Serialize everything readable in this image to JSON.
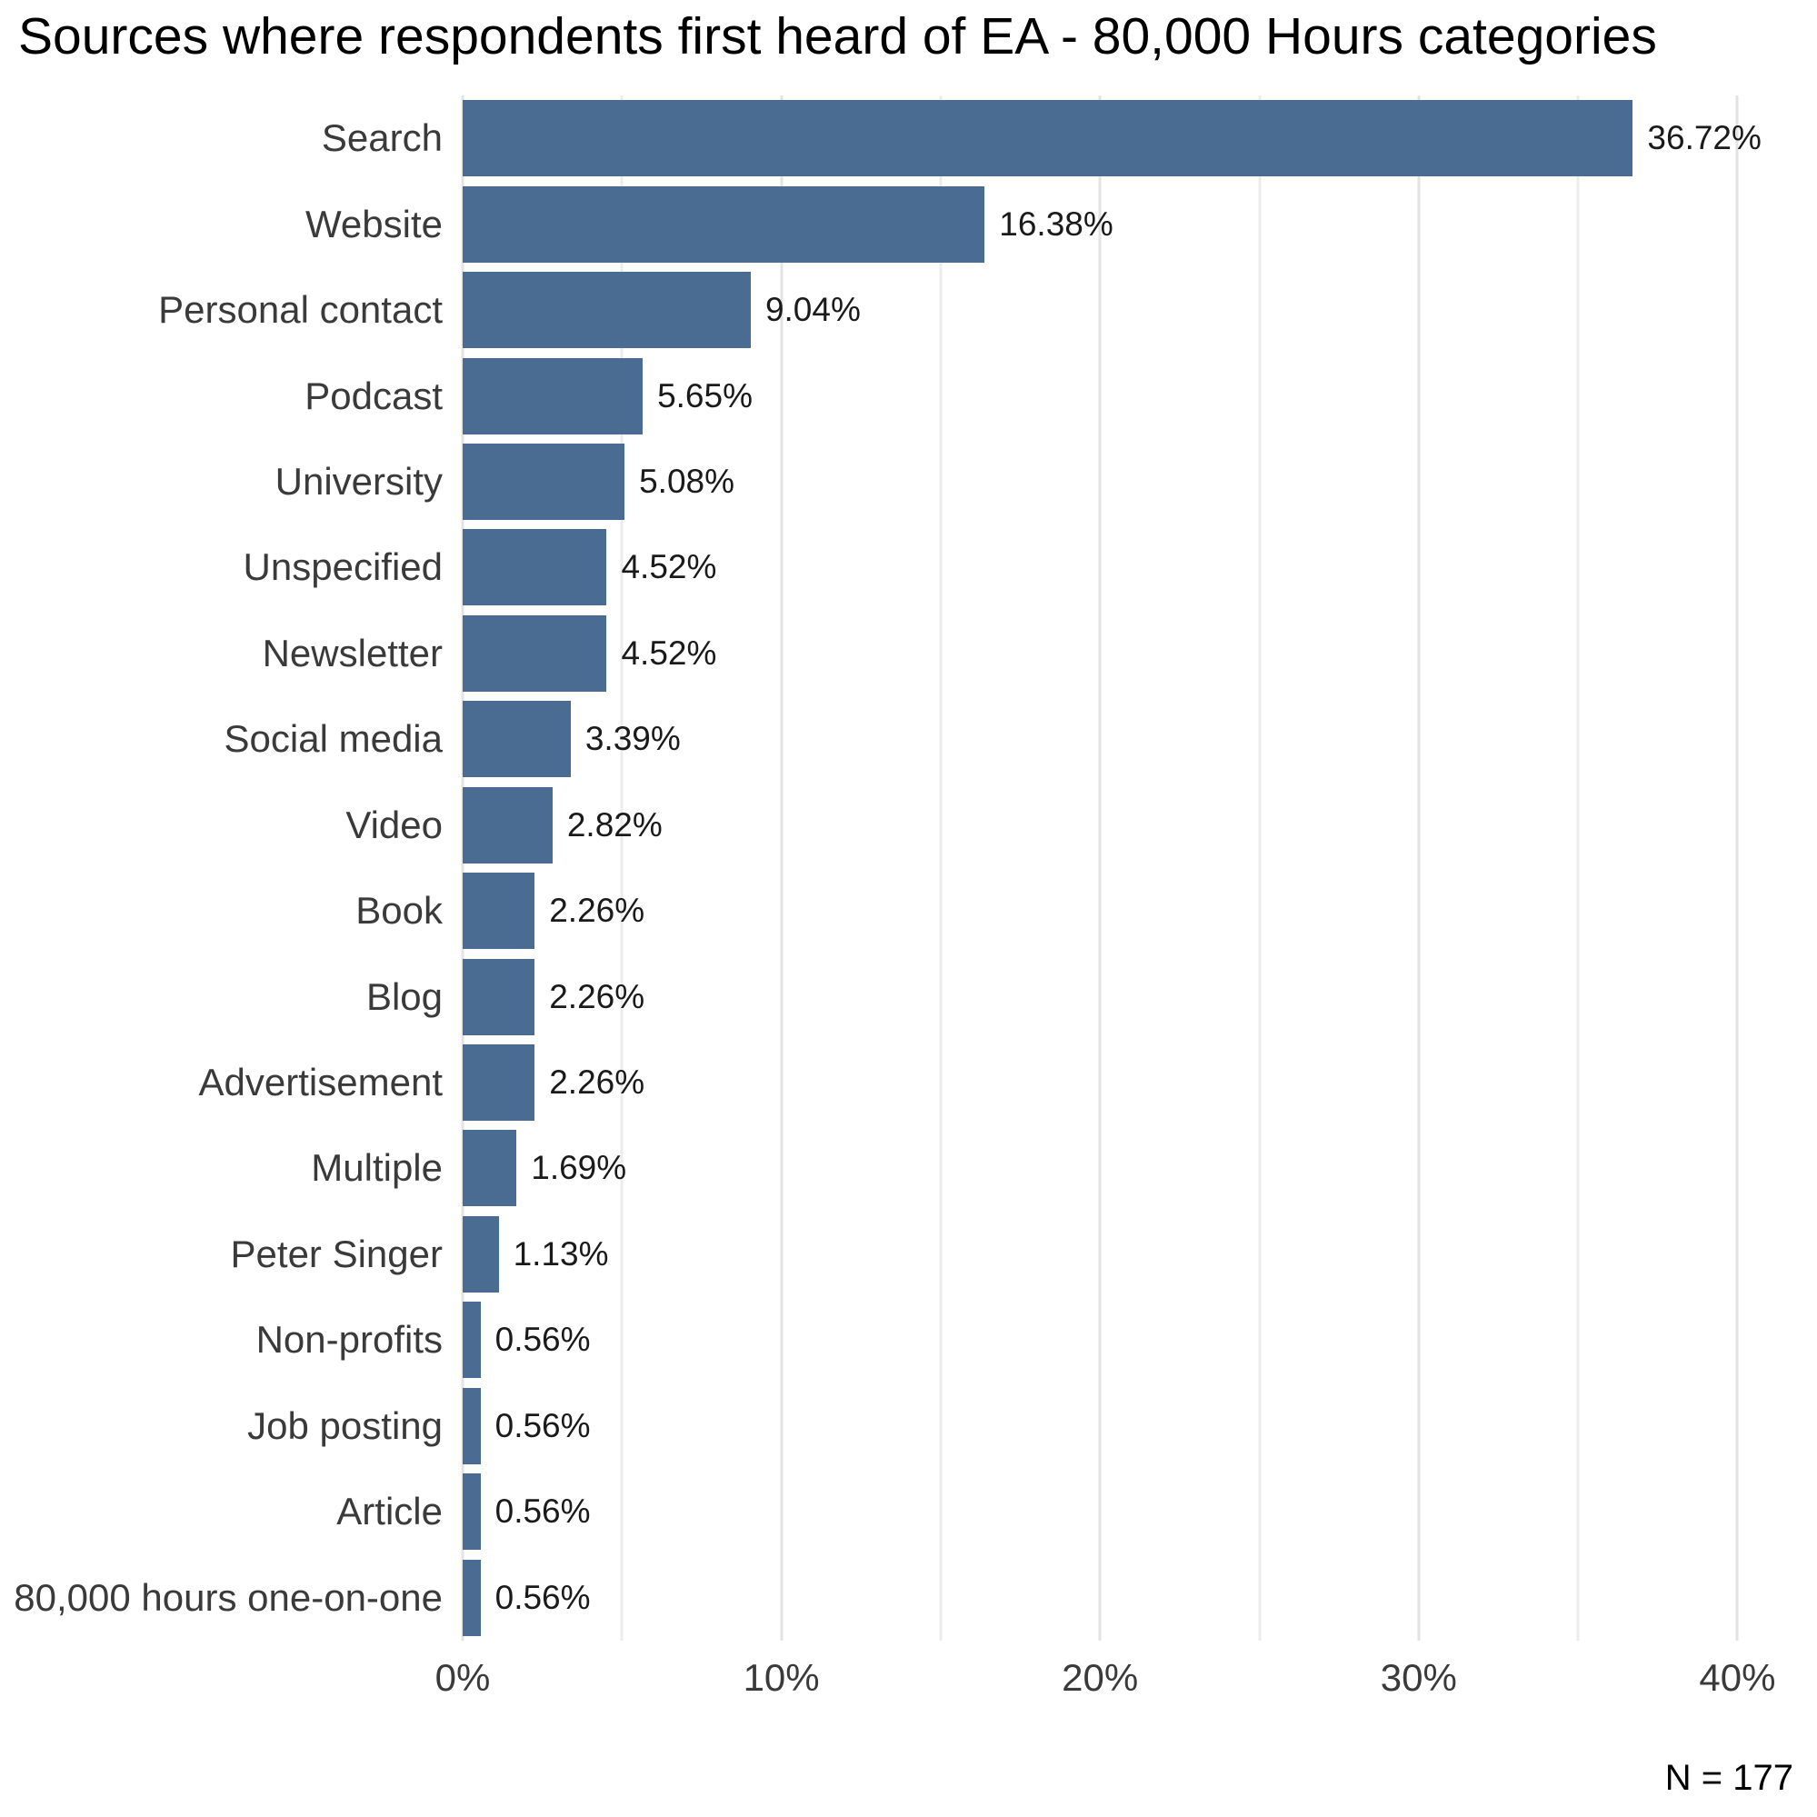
{
  "title": "Sources where respondents first heard of EA - 80,000 Hours categories",
  "chart_data": {
    "type": "bar",
    "orientation": "horizontal",
    "title": "Sources where respondents first heard of EA - 80,000 Hours categories",
    "categories": [
      "Search",
      "Website",
      "Personal contact",
      "Podcast",
      "University",
      "Unspecified",
      "Newsletter",
      "Social media",
      "Video",
      "Book",
      "Blog",
      "Advertisement",
      "Multiple",
      "Peter Singer",
      "Non-profits",
      "Job posting",
      "Article",
      "80,000 hours one-on-one"
    ],
    "values": [
      36.72,
      16.38,
      9.04,
      5.65,
      5.08,
      4.52,
      4.52,
      3.39,
      2.82,
      2.26,
      2.26,
      2.26,
      1.69,
      1.13,
      0.56,
      0.56,
      0.56,
      0.56
    ],
    "value_labels": [
      "36.72%",
      "16.38%",
      "9.04%",
      "5.65%",
      "5.08%",
      "4.52%",
      "4.52%",
      "3.39%",
      "2.82%",
      "2.26%",
      "2.26%",
      "2.26%",
      "1.69%",
      "1.13%",
      "0.56%",
      "0.56%",
      "0.56%",
      "0.56%"
    ],
    "xlabel": "",
    "ylabel": "",
    "x_tick_labels": [
      "0%",
      "10%",
      "20%",
      "30%",
      "40%"
    ],
    "x_tick_values": [
      0,
      10,
      20,
      30,
      40
    ],
    "x_minor_tick_values": [
      5,
      15,
      25,
      35
    ],
    "xlim": [
      0,
      41.1
    ],
    "grid": "on",
    "legend": "none",
    "bar_color": "#4a6b92",
    "major_gridline_color": "#e3e3e3",
    "minor_gridline_color": "#ececec",
    "sample_note": "N = 177"
  }
}
